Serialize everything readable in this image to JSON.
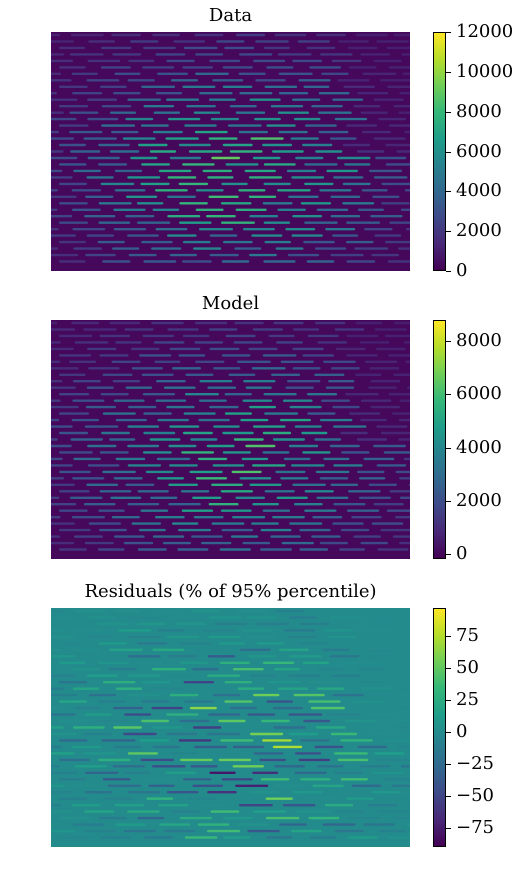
{
  "colormap": [
    "#440154",
    "#482878",
    "#3e4989",
    "#31688e",
    "#26828e",
    "#1f9e89",
    "#35b779",
    "#6ece58",
    "#b5de2b",
    "#fde725"
  ],
  "panels": [
    {
      "title": "Data",
      "colorbar": {
        "min": 0,
        "max": 12000,
        "ticks": [
          0,
          2000,
          4000,
          6000,
          8000,
          10000,
          12000
        ],
        "tick_labels": [
          "0",
          "2000",
          "4000",
          "6000",
          "8000",
          "10000",
          "12000"
        ]
      }
    },
    {
      "title": "Model",
      "colorbar": {
        "min": -200,
        "max": 8800,
        "ticks": [
          0,
          2000,
          4000,
          6000,
          8000
        ],
        "tick_labels": [
          "0",
          "2000",
          "4000",
          "6000",
          "8000"
        ]
      }
    },
    {
      "title": "Residuals (% of 95% percentile)",
      "colorbar": {
        "min": -90,
        "max": 97,
        "ticks": [
          -75,
          -50,
          -25,
          0,
          25,
          50,
          75
        ],
        "tick_labels": [
          "−75",
          "−50",
          "−25",
          "0",
          "25",
          "50",
          "75"
        ]
      }
    }
  ],
  "chart_data": [
    {
      "type": "heatmap",
      "title": "Data",
      "colorbar_range": [
        0,
        12000
      ],
      "colorbar_ticks": [
        0,
        2000,
        4000,
        6000,
        8000,
        10000,
        12000
      ],
      "axes_visible": false
    },
    {
      "type": "heatmap",
      "title": "Model",
      "colorbar_range": [
        -200,
        8800
      ],
      "colorbar_ticks": [
        0,
        2000,
        4000,
        6000,
        8000
      ],
      "axes_visible": false
    },
    {
      "type": "heatmap",
      "title": "Residuals (% of 95% percentile)",
      "colorbar_range": [
        -90,
        97
      ],
      "colorbar_ticks": [
        -75,
        -50,
        -25,
        0,
        25,
        50,
        75
      ],
      "axes_visible": false
    }
  ]
}
